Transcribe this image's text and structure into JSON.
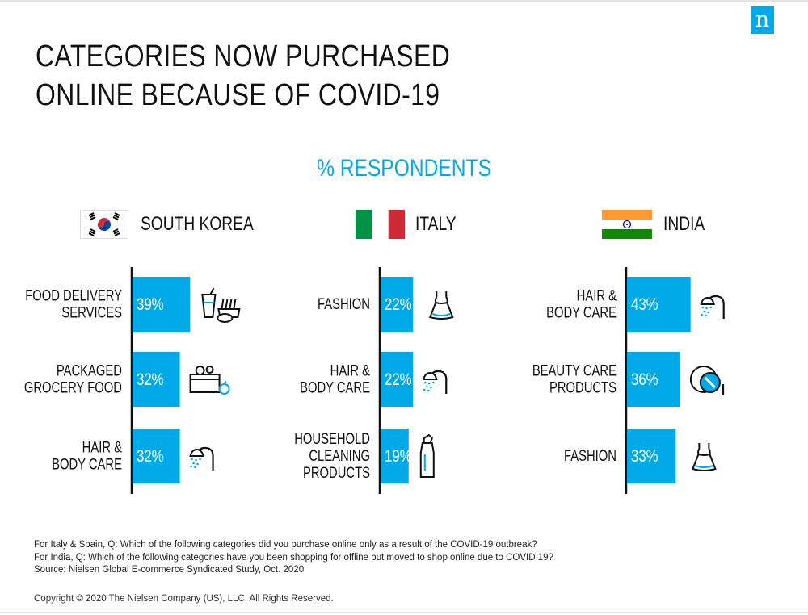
{
  "brand": {
    "logo_letter": "n",
    "accent_color": "#00a9e8"
  },
  "title": "CATEGORIES NOW PURCHASED ONLINE BECAUSE OF COVID-19",
  "subtitle": "% RESPONDENTS",
  "chart_data": [
    {
      "type": "bar",
      "title": "SOUTH KOREA",
      "categories": [
        [
          "FOOD DELIVERY",
          "SERVICES"
        ],
        [
          "PACKAGED",
          "GROCERY FOOD"
        ],
        [
          "HAIR &",
          "BODY CARE"
        ]
      ],
      "values": [
        39,
        32,
        32
      ],
      "value_labels": [
        "39%",
        "32%",
        "32%"
      ],
      "icons": [
        "fast-food-icon",
        "grocery-basket-icon",
        "shower-icon"
      ],
      "color": "#00a9e8",
      "xlim": [
        0,
        100
      ]
    },
    {
      "type": "bar",
      "title": "ITALY",
      "categories": [
        [
          "FASHION"
        ],
        [
          "HAIR &",
          "BODY CARE"
        ],
        [
          "HOUSEHOLD",
          "CLEANING",
          "PRODUCTS"
        ]
      ],
      "values": [
        22,
        22,
        19
      ],
      "value_labels": [
        "22%",
        "22%",
        "19%"
      ],
      "icons": [
        "dress-icon",
        "shower-icon",
        "cleaner-bottle-icon"
      ],
      "color": "#00a9e8",
      "xlim": [
        0,
        100
      ]
    },
    {
      "type": "bar",
      "title": "INDIA",
      "categories": [
        [
          "HAIR &",
          "BODY CARE"
        ],
        [
          "BEAUTY CARE",
          "PRODUCTS"
        ],
        [
          "FASHION"
        ]
      ],
      "values": [
        43,
        36,
        33
      ],
      "value_labels": [
        "43%",
        "36%",
        "33%"
      ],
      "icons": [
        "shower-icon",
        "compact-mirror-icon",
        "dress-icon"
      ],
      "color": "#00a9e8",
      "xlim": [
        0,
        100
      ]
    }
  ],
  "flags": [
    "south-korea-flag-icon",
    "italy-flag-icon",
    "india-flag-icon"
  ],
  "notes": [
    "For Italy & Spain, Q: Which of the following categories did you purchase online only as a result of the COVID-19 outbreak?",
    "For India, Q: Which of the following categories have you been shopping for offline but moved to shop online due to COVID 19?",
    "Source: Nielsen Global E-commerce Syndicated Study, Oct. 2020"
  ],
  "copyright": "Copyright © 2020 The Nielsen Company (US), LLC. All Rights Reserved."
}
